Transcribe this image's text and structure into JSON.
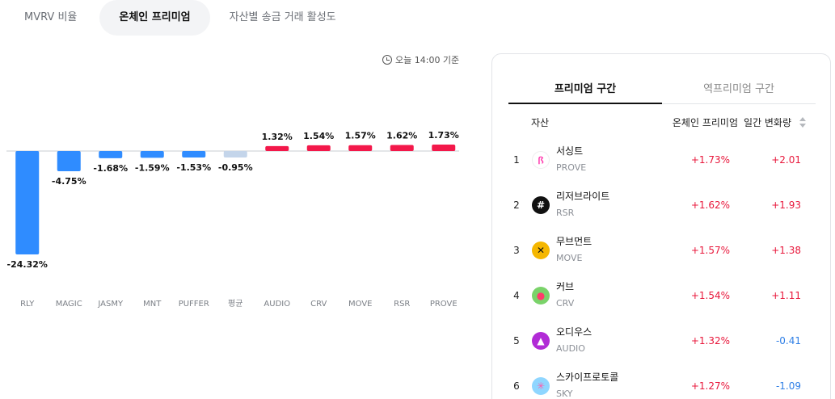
{
  "tabs": [
    {
      "label": "MVRV 비율",
      "active": false
    },
    {
      "label": "온체인 프리미엄",
      "active": true
    },
    {
      "label": "자산별 송금 거래 활성도",
      "active": false
    }
  ],
  "timestamp": "오늘 14:00 기준",
  "chart_data": {
    "type": "bar",
    "categories": [
      "RLY",
      "MAGIC",
      "JASMY",
      "MNT",
      "PUFFER",
      "평균",
      "AUDIO",
      "CRV",
      "MOVE",
      "RSR",
      "PROVE"
    ],
    "values": [
      -24.32,
      -4.75,
      -1.68,
      -1.59,
      -1.53,
      -0.95,
      1.32,
      1.54,
      1.57,
      1.62,
      1.73
    ],
    "labels": [
      "-24.32%",
      "-4.75%",
      "-1.68%",
      "-1.59%",
      "-1.53%",
      "-0.95%",
      "1.32%",
      "1.54%",
      "1.57%",
      "1.62%",
      "1.73%"
    ],
    "colors": {
      "negative": "#2f8cff",
      "average": "#c4d5ea",
      "positive": "#f3184a"
    },
    "title": "",
    "xlabel": "",
    "ylabel": ""
  },
  "panel": {
    "tabs": [
      {
        "label": "프리미엄 구간",
        "active": true
      },
      {
        "label": "역프리미엄 구간",
        "active": false
      }
    ],
    "headers": {
      "asset": "자산",
      "premium": "온체인 프리미엄",
      "change": "일간 변화량"
    },
    "rows": [
      {
        "rank": "1",
        "name": "서싱트",
        "symbol": "PROVE",
        "premium": "+1.73%",
        "change": "+2.01",
        "dir": "pos",
        "icon": "prove-icon",
        "icon_bg": "#ffffff",
        "icon_fg": "#ff3fb0",
        "glyph": "ꟗ"
      },
      {
        "rank": "2",
        "name": "리저브라이트",
        "symbol": "RSR",
        "premium": "+1.62%",
        "change": "+1.93",
        "dir": "pos",
        "icon": "rsr-icon",
        "icon_bg": "#111111",
        "icon_fg": "#ffffff",
        "glyph": "#"
      },
      {
        "rank": "3",
        "name": "무브먼트",
        "symbol": "MOVE",
        "premium": "+1.57%",
        "change": "+1.38",
        "dir": "pos",
        "icon": "move-icon",
        "icon_bg": "#f5b700",
        "icon_fg": "#111111",
        "glyph": "✕"
      },
      {
        "rank": "4",
        "name": "커브",
        "symbol": "CRV",
        "premium": "+1.54%",
        "change": "+1.11",
        "dir": "pos",
        "icon": "crv-icon",
        "icon_bg": "#7ad36a",
        "icon_fg": "#ff3b6b",
        "glyph": "●"
      },
      {
        "rank": "5",
        "name": "오디우스",
        "symbol": "AUDIO",
        "premium": "+1.32%",
        "change": "-0.41",
        "dir": "neg",
        "icon": "audio-icon",
        "icon_bg": "#b12bd6",
        "icon_fg": "#ffffff",
        "glyph": "▲"
      },
      {
        "rank": "6",
        "name": "스카이프로토콜",
        "symbol": "SKY",
        "premium": "+1.27%",
        "change": "-1.09",
        "dir": "neg",
        "icon": "sky-icon",
        "icon_bg": "#8fd6ff",
        "icon_fg": "#ff5aa8",
        "glyph": "✳"
      }
    ]
  }
}
